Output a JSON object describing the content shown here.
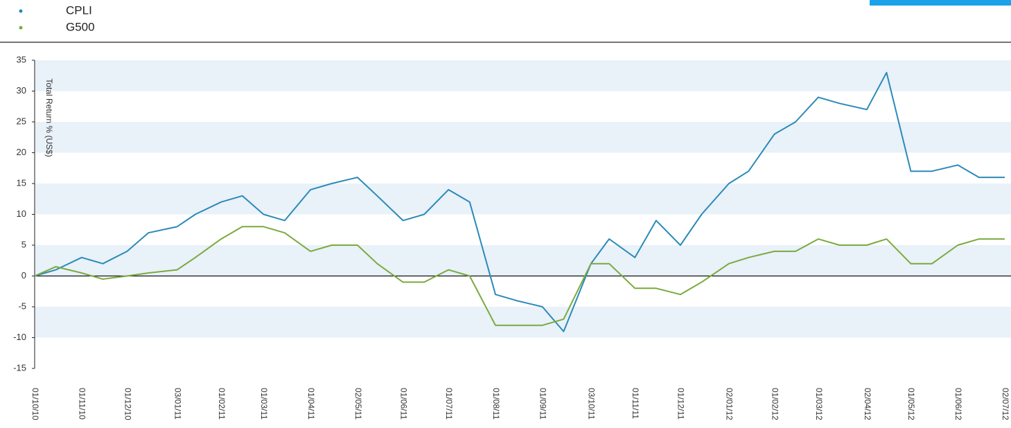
{
  "chart_data": {
    "type": "line",
    "y_axis_label": "Total Return % (US$)",
    "x": [
      "01/10/10",
      "15/10/10",
      "01/11/10",
      "15/11/10",
      "01/12/10",
      "15/12/10",
      "03/01/11",
      "15/01/11",
      "01/02/11",
      "15/02/11",
      "01/03/11",
      "15/03/11",
      "01/04/11",
      "15/04/11",
      "02/05/11",
      "15/05/11",
      "01/06/11",
      "15/06/11",
      "01/07/11",
      "15/07/11",
      "01/08/11",
      "15/08/11",
      "01/09/11",
      "15/09/11",
      "03/10/11",
      "15/10/11",
      "01/11/11",
      "15/11/11",
      "01/12/11",
      "15/12/11",
      "02/01/12",
      "15/01/12",
      "01/02/12",
      "15/02/12",
      "01/03/12",
      "15/03/12",
      "02/04/12",
      "15/04/12",
      "01/05/12",
      "15/05/12",
      "01/06/12",
      "15/06/12",
      "02/07/12"
    ],
    "series": [
      {
        "name": "CPLI",
        "color": "#2a8ab8",
        "values": [
          0,
          1,
          3,
          2,
          4,
          7,
          8,
          10,
          12,
          13,
          10,
          9,
          14,
          15,
          16,
          13,
          9,
          10,
          14,
          12,
          -3,
          -4,
          -5,
          -9,
          2,
          6,
          3,
          9,
          5,
          10,
          15,
          17,
          23,
          25,
          29,
          28,
          27,
          33,
          17,
          17,
          18,
          16,
          16
        ]
      },
      {
        "name": "G500",
        "color": "#7aaa3c",
        "values": [
          0,
          1.5,
          0.5,
          -0.5,
          0,
          0.5,
          1,
          3,
          6,
          8,
          8,
          7,
          4,
          5,
          5,
          2,
          -1,
          -1,
          1,
          0,
          -8,
          -8,
          -8,
          -7,
          2,
          2,
          -2,
          -2,
          -3,
          -1,
          2,
          3,
          4,
          4,
          6,
          5,
          5,
          6,
          2,
          2,
          5,
          6,
          6
        ]
      }
    ],
    "xlim": [
      "01/10/10",
      "02/07/12"
    ],
    "xticks": [
      "01/10/10",
      "01/11/10",
      "01/12/10",
      "03/01/11",
      "01/02/11",
      "01/03/11",
      "01/04/11",
      "02/05/11",
      "01/06/11",
      "01/07/11",
      "01/08/11",
      "01/09/11",
      "03/10/11",
      "01/11/11",
      "01/12/11",
      "02/01/12",
      "01/02/12",
      "01/03/12",
      "02/04/12",
      "01/05/12",
      "01/06/12",
      "02/07/12"
    ],
    "ylim": [
      -15,
      35
    ],
    "yticks": [
      -15,
      -10,
      -5,
      0,
      5,
      10,
      15,
      20,
      25,
      30,
      35
    ],
    "grid": true
  }
}
